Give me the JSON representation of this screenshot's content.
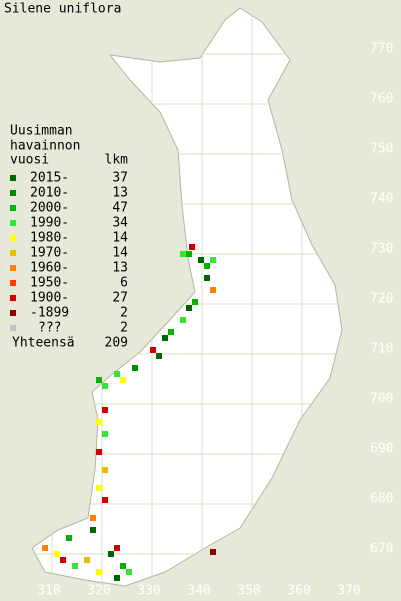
{
  "title": "Silene uniflora",
  "legend": {
    "header": [
      "Uusimman",
      "havainnon"
    ],
    "col_year": "vuosi",
    "col_count": "lkm",
    "rows": [
      {
        "label": "2015-",
        "count": 37,
        "color": "#006400"
      },
      {
        "label": "2010-",
        "count": 13,
        "color": "#008c00"
      },
      {
        "label": "2000-",
        "count": 47,
        "color": "#00b400"
      },
      {
        "label": "1990-",
        "count": 34,
        "color": "#33e633"
      },
      {
        "label": "1980-",
        "count": 14,
        "color": "#ffff00"
      },
      {
        "label": "1970-",
        "count": 14,
        "color": "#e6c000"
      },
      {
        "label": "1960-",
        "count": 13,
        "color": "#ff7f00"
      },
      {
        "label": "1950-",
        "count": 6,
        "color": "#ff3c00"
      },
      {
        "label": "1900-",
        "count": 27,
        "color": "#d00000"
      },
      {
        "label": "-1899",
        "count": 2,
        "color": "#8b0000"
      },
      {
        "label": "???",
        "count": 2,
        "color": "#c0c0c0"
      }
    ],
    "total_label": "Yhteensä",
    "total": 209
  },
  "y_axis": [
    770,
    760,
    750,
    740,
    730,
    720,
    710,
    700,
    690,
    680,
    670
  ],
  "x_axis": [
    310,
    320,
    330,
    340,
    350,
    360,
    370
  ]
}
